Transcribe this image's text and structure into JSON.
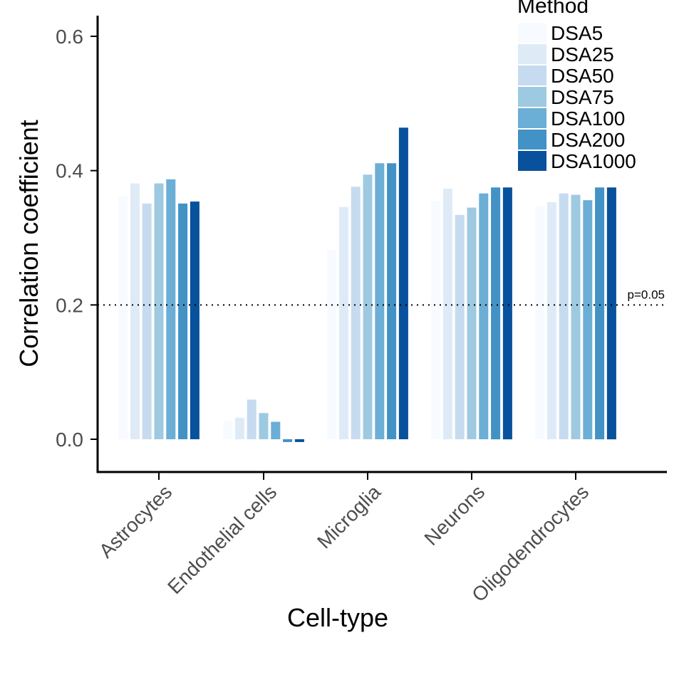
{
  "chart_data": {
    "type": "bar",
    "xlabel": "Cell-type",
    "ylabel": "Correlation coefficient",
    "ylim": [
      -0.05,
      0.62
    ],
    "yticks": [
      "0.0",
      "0.2",
      "0.4",
      "0.6"
    ],
    "ytick_values": [
      0.0,
      0.2,
      0.4,
      0.6
    ],
    "categories": [
      "Astrocytes",
      "Endothelial cells",
      "Microglia",
      "Neurons",
      "Oligodendrocytes"
    ],
    "legend": {
      "title": "Method",
      "position": "top-right"
    },
    "series": [
      {
        "name": "DSA5",
        "color": "#f7fbff",
        "values": [
          0.362,
          0.028,
          0.282,
          0.355,
          0.347
        ]
      },
      {
        "name": "DSA25",
        "color": "#deebf7",
        "values": [
          0.381,
          0.032,
          0.346,
          0.373,
          0.353
        ]
      },
      {
        "name": "DSA50",
        "color": "#c6dbef",
        "values": [
          0.351,
          0.059,
          0.376,
          0.334,
          0.366
        ]
      },
      {
        "name": "DSA75",
        "color": "#9ecae1",
        "values": [
          0.381,
          0.039,
          0.394,
          0.345,
          0.364
        ]
      },
      {
        "name": "DSA100",
        "color": "#6baed6",
        "values": [
          0.387,
          0.026,
          0.411,
          0.366,
          0.356
        ]
      },
      {
        "name": "DSA200",
        "color": "#4292c6",
        "values": [
          0.351,
          -0.002,
          0.411,
          0.375,
          0.375
        ]
      },
      {
        "name": "DSA1000",
        "color": "#08519c",
        "values": [
          0.354,
          -0.002,
          0.464,
          0.375,
          0.375
        ]
      }
    ],
    "reference_line": {
      "value": 0.2,
      "label": "p=0.05",
      "style": "dotted"
    },
    "grid": false
  }
}
